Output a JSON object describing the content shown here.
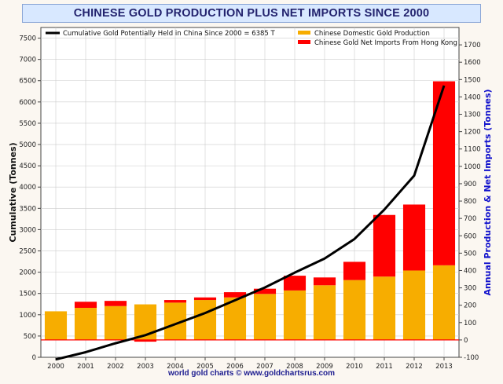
{
  "title": "CHINESE GOLD PRODUCTION PLUS NET IMPORTS SINCE 2000",
  "footer": "world gold charts © www.goldchartsrus.com",
  "colors": {
    "production": "#f7ad00",
    "imports": "#ff0000",
    "cumulative": "#000000",
    "right_axis_label": "#1111cc",
    "title_bg": "#d8e8ff",
    "title_text": "#23236e",
    "grid": "#cccccc"
  },
  "chart_data": {
    "type": "bar",
    "categories": [
      "2000",
      "2001",
      "2002",
      "2003",
      "2004",
      "2005",
      "2006",
      "2007",
      "2008",
      "2009",
      "2010",
      "2011",
      "2012",
      "2013"
    ],
    "ylabel": "Cumulative (Tonnes)",
    "ylabel_right": "Annual Production & Net Imports (Tonnes)",
    "ylim": [
      0,
      7750
    ],
    "ylim_right": [
      -100,
      1800
    ],
    "yticks_left": [
      0,
      500,
      1000,
      1500,
      2000,
      2500,
      3000,
      3500,
      4000,
      4500,
      5000,
      5500,
      6000,
      6500,
      7000,
      7500
    ],
    "yticks_right": [
      -100,
      0,
      100,
      200,
      300,
      400,
      500,
      600,
      700,
      800,
      900,
      1000,
      1100,
      1200,
      1300,
      1400,
      1500,
      1600,
      1700
    ],
    "grid": true,
    "legend": [
      {
        "label": "Cumulative Gold Potentially Held in China Since 2000 = 6385 T",
        "type": "line",
        "color": "#000000",
        "position": "top-left"
      },
      {
        "label": "Chinese Domestic Gold Production",
        "type": "bar",
        "color": "#f7ad00",
        "position": "top-right"
      },
      {
        "label": "Chinese Gold Net Imports From Hong Kong",
        "type": "bar",
        "color": "#ff0000",
        "position": "top-right"
      }
    ],
    "series": [
      {
        "name": "Chinese Domestic Gold Production",
        "axis": "right",
        "values": [
          165,
          185,
          195,
          205,
          215,
          230,
          245,
          265,
          285,
          315,
          345,
          365,
          400,
          430
        ]
      },
      {
        "name": "Chinese Gold Net Imports From Hong Kong",
        "axis": "right",
        "values": [
          0,
          35,
          30,
          -10,
          15,
          15,
          30,
          30,
          85,
          45,
          105,
          355,
          380,
          1060
        ]
      },
      {
        "name": "Cumulative Gold Potentially Held in China Since 2000 = 6385 T",
        "axis": "left",
        "type": "line",
        "values": [
          -50,
          120,
          330,
          520,
          780,
          1040,
          1340,
          1640,
          1990,
          2320,
          2780,
          3470,
          4270,
          6385
        ]
      }
    ],
    "zero_line_right": 0
  }
}
